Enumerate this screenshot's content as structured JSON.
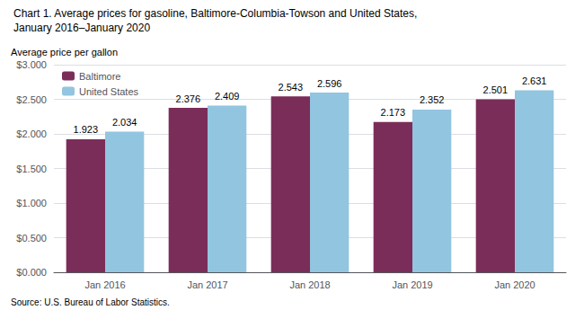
{
  "chart_data": {
    "type": "bar",
    "title": "Chart 1. Average prices for gasoline, Baltimore-Columbia-Towson and United States,",
    "subtitle": "January 2016–January 2020",
    "ylabel": "Average price per gallon",
    "annotations": [
      "Source: U.S. Bureau of Labor Statistics."
    ],
    "categories": [
      "Jan 2016",
      "Jan 2017",
      "Jan 2018",
      "Jan 2019",
      "Jan 2020"
    ],
    "series": [
      {
        "name": "Baltimore",
        "color": "#7B2D5A",
        "values": [
          1.923,
          2.376,
          2.543,
          2.173,
          2.501
        ]
      },
      {
        "name": "United States",
        "color": "#92C5E0",
        "values": [
          2.034,
          2.409,
          2.596,
          2.352,
          2.631
        ]
      }
    ],
    "ylim": [
      0,
      3.0
    ],
    "yticks": [
      {
        "value": 0.0,
        "label": "$0.000"
      },
      {
        "value": 0.5,
        "label": "$0.500"
      },
      {
        "value": 1.0,
        "label": "$1.000"
      },
      {
        "value": 1.5,
        "label": "$1.500"
      },
      {
        "value": 2.0,
        "label": "$2.000"
      },
      {
        "value": 2.5,
        "label": "$2.500"
      },
      {
        "value": 3.0,
        "label": "$3.000"
      }
    ],
    "grid": true,
    "legend": "upper left",
    "data_labels": true
  }
}
